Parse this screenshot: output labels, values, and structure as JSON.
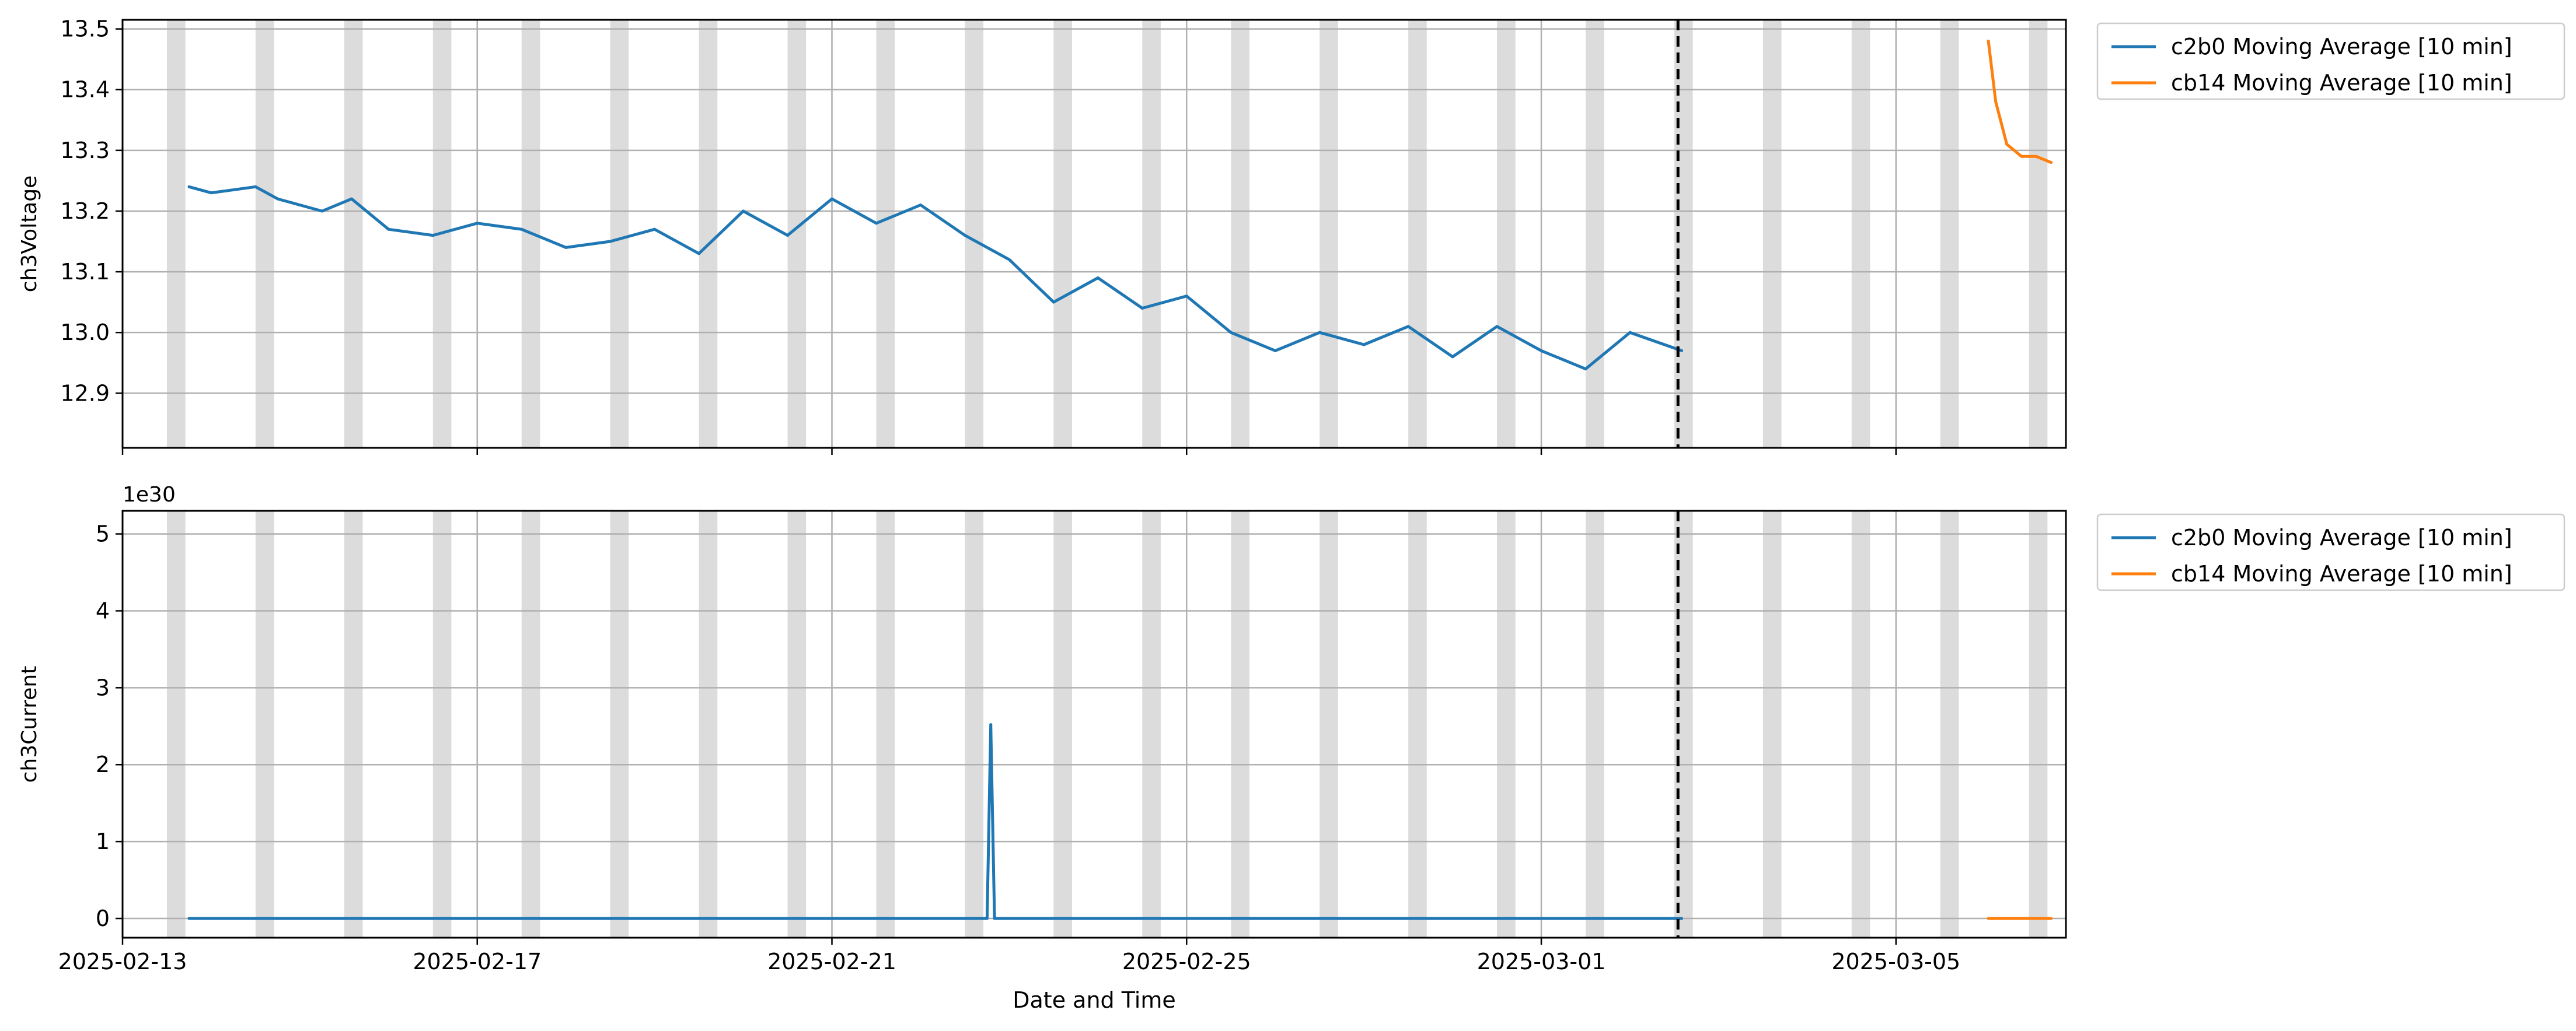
{
  "figure": {
    "xlabel": "Date and Time",
    "x_ticks": [
      "2025-02-13",
      "2025-02-17",
      "2025-02-21",
      "2025-02-25",
      "2025-03-01",
      "2025-03-05"
    ],
    "xlim": [
      "2025-02-13T00:00",
      "2025-03-06T22:00"
    ],
    "night_shading": "gray bands ~12:00-17:00 each day",
    "vline": "2025-03-02T13:00"
  },
  "colors": {
    "c2b0": "#1f77b4",
    "cb14": "#ff7f0e",
    "shade": "#dcdcdc",
    "grid": "#b0b0b0",
    "vline": "#000000"
  },
  "chart_data": [
    {
      "type": "line",
      "title": "",
      "xlabel": "",
      "ylabel": "ch3Voltage",
      "ylim": [
        12.81,
        13.515
      ],
      "y_ticks": [
        "12.9",
        "13.0",
        "13.1",
        "13.2",
        "13.3",
        "13.4",
        "13.5"
      ],
      "legend": [
        "c2b0 Moving Average [10 min]",
        "cb14 Moving Average [10 min]"
      ],
      "legend_placement": "outside upper right",
      "grid": true,
      "series": [
        {
          "name": "c2b0 Moving Average [10 min]",
          "x": [
            "2025-02-13T18:00",
            "2025-02-14T00:00",
            "2025-02-14T12:00",
            "2025-02-14T18:00",
            "2025-02-15T06:00",
            "2025-02-15T14:00",
            "2025-02-16T00:00",
            "2025-02-16T12:00",
            "2025-02-17T00:00",
            "2025-02-17T12:00",
            "2025-02-18T00:00",
            "2025-02-18T12:00",
            "2025-02-19T00:00",
            "2025-02-19T12:00",
            "2025-02-20T00:00",
            "2025-02-20T12:00",
            "2025-02-21T00:00",
            "2025-02-21T12:00",
            "2025-02-22T00:00",
            "2025-02-22T12:00",
            "2025-02-23T00:00",
            "2025-02-23T12:00",
            "2025-02-24T00:00",
            "2025-02-24T12:00",
            "2025-02-25T00:00",
            "2025-02-25T12:00",
            "2025-02-26T00:00",
            "2025-02-26T12:00",
            "2025-02-27T00:00",
            "2025-02-27T12:00",
            "2025-02-28T00:00",
            "2025-02-28T12:00",
            "2025-03-01T00:00",
            "2025-03-01T12:00",
            "2025-03-02T00:00",
            "2025-03-02T14:00"
          ],
          "y": [
            13.24,
            13.23,
            13.24,
            13.22,
            13.2,
            13.22,
            13.17,
            13.16,
            13.18,
            13.17,
            13.14,
            13.15,
            13.17,
            13.13,
            13.2,
            13.16,
            13.22,
            13.18,
            13.21,
            13.16,
            13.12,
            13.05,
            13.09,
            13.04,
            13.06,
            13.0,
            12.97,
            13.0,
            12.98,
            13.01,
            12.96,
            13.01,
            12.97,
            12.94,
            13.0,
            12.97
          ]
        },
        {
          "name": "cb14 Moving Average [10 min]",
          "x": [
            "2025-03-06T01:00",
            "2025-03-06T03:00",
            "2025-03-06T06:00",
            "2025-03-06T10:00",
            "2025-03-06T14:00",
            "2025-03-06T18:00"
          ],
          "y": [
            13.48,
            13.38,
            13.31,
            13.29,
            13.29,
            13.28
          ]
        }
      ]
    },
    {
      "type": "line",
      "title": "",
      "xlabel": "Date and Time",
      "ylabel": "ch3Current",
      "scale_label": "1e30",
      "ylim": [
        -0.25,
        5.3
      ],
      "y_ticks": [
        "0",
        "1",
        "2",
        "3",
        "4",
        "5"
      ],
      "legend": [
        "c2b0 Moving Average [10 min]",
        "cb14 Moving Average [10 min]"
      ],
      "legend_placement": "outside upper right",
      "grid": true,
      "series": [
        {
          "name": "c2b0 Moving Average [10 min]",
          "x": [
            "2025-02-13T18:00",
            "2025-02-22T18:00",
            "2025-02-22T19:00",
            "2025-02-22T20:00",
            "2025-03-02T14:00"
          ],
          "y": [
            0,
            0,
            2.52,
            0,
            0
          ]
        },
        {
          "name": "cb14 Moving Average [10 min]",
          "x": [
            "2025-03-06T01:00",
            "2025-03-06T18:00"
          ],
          "y": [
            0,
            0
          ]
        }
      ]
    }
  ]
}
